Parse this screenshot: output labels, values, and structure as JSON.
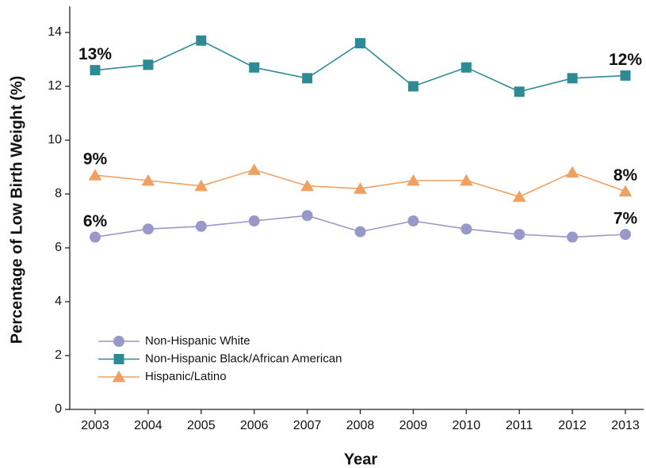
{
  "chart_data": {
    "type": "line",
    "ylabel": "Percentage of Low Birth Weight (%)",
    "xlabel": "Year",
    "categories": [
      "2003",
      "2004",
      "2005",
      "2006",
      "2007",
      "2008",
      "2009",
      "2010",
      "2011",
      "2012",
      "2013"
    ],
    "series": [
      {
        "name": "Non-Hispanic White",
        "color": "#9a97c9",
        "marker": "circle",
        "values": [
          6.4,
          6.7,
          6.8,
          7.0,
          7.2,
          6.6,
          7.0,
          6.7,
          6.5,
          6.4,
          6.5
        ],
        "value_labels": [
          "6%",
          null,
          null,
          null,
          null,
          null,
          null,
          null,
          null,
          null,
          "7%"
        ]
      },
      {
        "name": "Non-Hispanic Black/African American",
        "color": "#2e8b95",
        "marker": "square",
        "values": [
          12.6,
          12.8,
          13.7,
          12.7,
          12.3,
          13.6,
          12.0,
          12.7,
          11.8,
          12.3,
          12.4
        ],
        "value_labels": [
          "13%",
          null,
          null,
          null,
          null,
          null,
          null,
          null,
          null,
          null,
          "12%"
        ]
      },
      {
        "name": "Hispanic/Latino",
        "color": "#f0a060",
        "marker": "triangle",
        "values": [
          8.7,
          8.5,
          8.3,
          8.9,
          8.3,
          8.2,
          8.5,
          8.5,
          7.9,
          8.8,
          8.1
        ],
        "value_labels": [
          "9%",
          null,
          null,
          null,
          null,
          null,
          null,
          null,
          null,
          null,
          "8%"
        ]
      }
    ],
    "ylim": [
      0,
      15
    ],
    "yticks": [
      0,
      2,
      4,
      6,
      8,
      10,
      12,
      14
    ],
    "legend": "lower left"
  }
}
